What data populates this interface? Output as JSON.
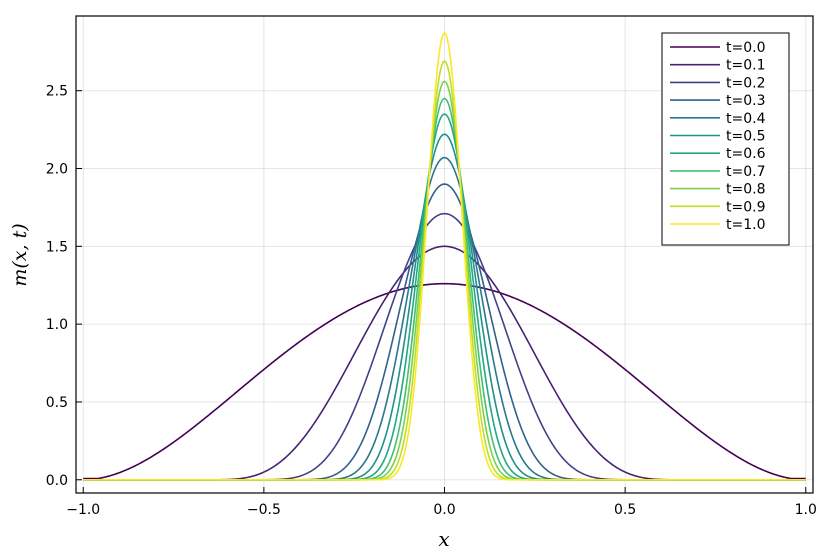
{
  "chart_data": {
    "type": "line",
    "title": "",
    "xlabel": "x",
    "ylabel": "m(x, t)",
    "xlim": [
      -1.02,
      1.02
    ],
    "ylim": [
      -0.085,
      2.98
    ],
    "x_ticks": [
      -1.0,
      -0.5,
      0.0,
      0.5,
      1.0
    ],
    "x_tick_labels": [
      "−1.0",
      "−0.5",
      "0.0",
      "0.5",
      "1.0"
    ],
    "y_ticks": [
      0.0,
      0.5,
      1.0,
      1.5,
      2.0,
      2.5
    ],
    "y_tick_labels": [
      "0.0",
      "0.5",
      "1.0",
      "1.5",
      "2.0",
      "2.5"
    ],
    "grid": true,
    "legend_position": "top-right",
    "curve_shape": "symmetric bell-shaped profiles centered at x = 0, sharpening with t",
    "series": [
      {
        "name": "t=0.0",
        "peak": 1.26,
        "halfwidth": 1.0,
        "color": "#440154"
      },
      {
        "name": "t=0.1",
        "peak": 1.5,
        "halfwidth": 0.66,
        "color": "#482374"
      },
      {
        "name": "t=0.2",
        "peak": 1.71,
        "halfwidth": 0.56,
        "color": "#404387"
      },
      {
        "name": "t=0.3",
        "peak": 1.9,
        "halfwidth": 0.48,
        "color": "#345f8d"
      },
      {
        "name": "t=0.4",
        "peak": 2.07,
        "halfwidth": 0.44,
        "color": "#29788e"
      },
      {
        "name": "t=0.5",
        "peak": 2.22,
        "halfwidth": 0.41,
        "color": "#20908c"
      },
      {
        "name": "t=0.6",
        "peak": 2.35,
        "halfwidth": 0.385,
        "color": "#22a884"
      },
      {
        "name": "t=0.7",
        "peak": 2.45,
        "halfwidth": 0.365,
        "color": "#43bf71"
      },
      {
        "name": "t=0.8",
        "peak": 2.56,
        "halfwidth": 0.35,
        "color": "#7ad151"
      },
      {
        "name": "t=0.9",
        "peak": 2.69,
        "halfwidth": 0.335,
        "color": "#bcdf27"
      },
      {
        "name": "t=1.0",
        "peak": 2.87,
        "halfwidth": 0.32,
        "color": "#fde724"
      }
    ]
  }
}
